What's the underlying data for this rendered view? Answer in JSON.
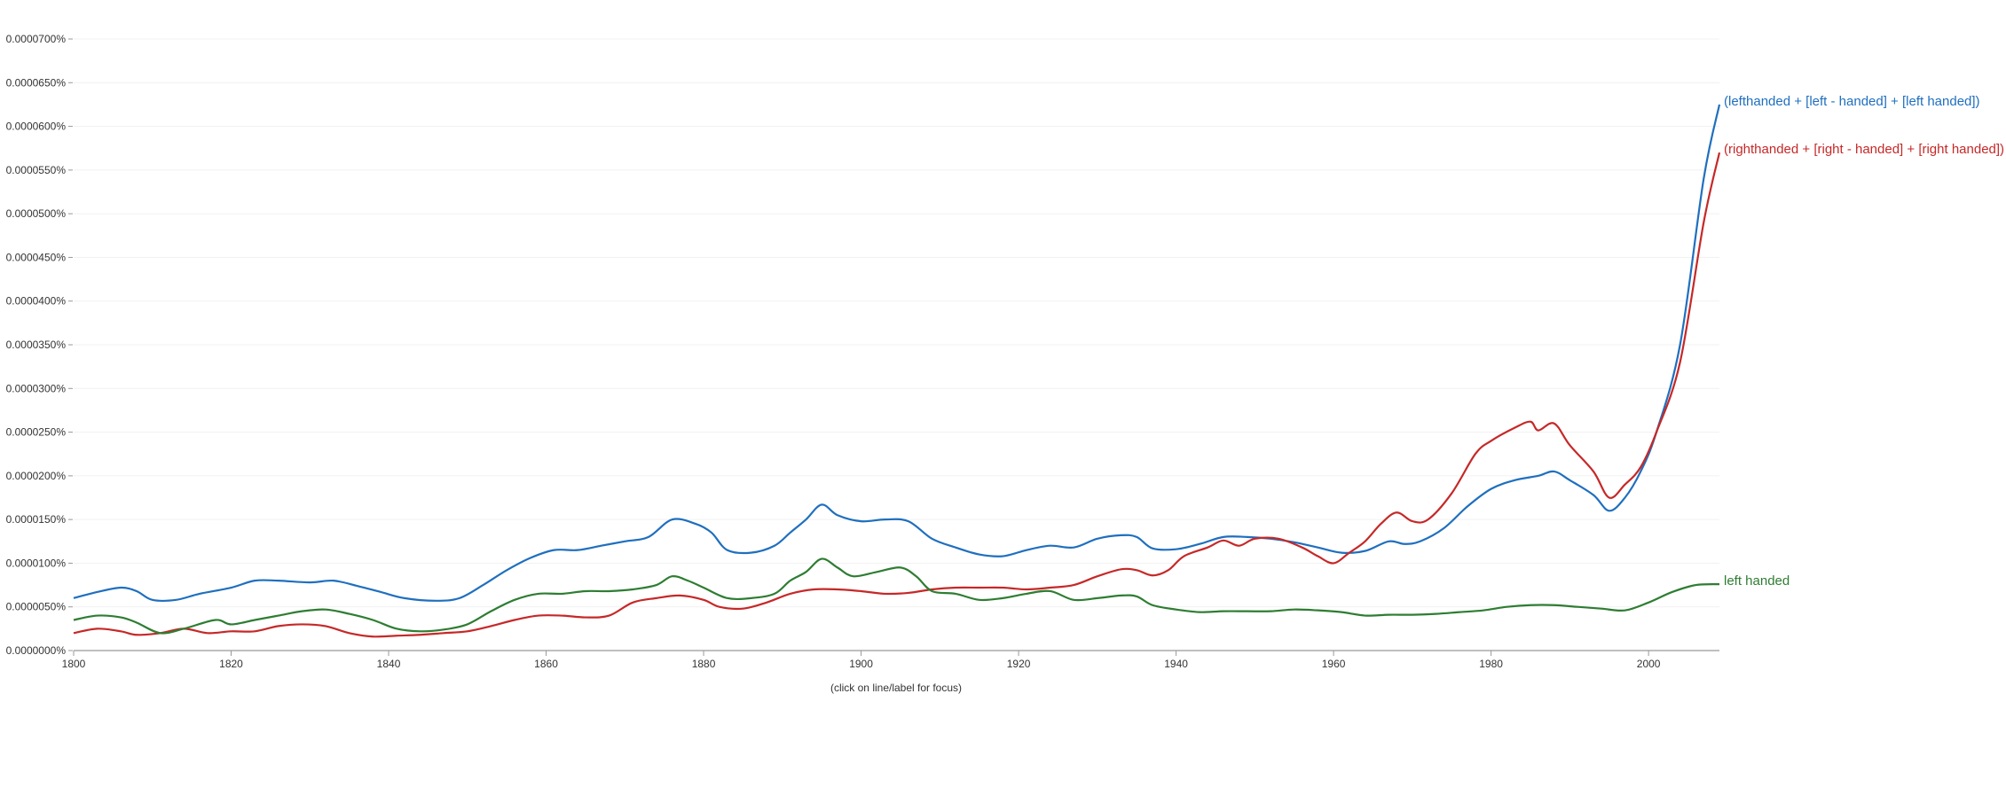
{
  "chart_data": {
    "type": "line",
    "note": "(click on line/label for focus)",
    "x_ticks": [
      "1800",
      "1820",
      "1840",
      "1860",
      "1880",
      "1900",
      "1920",
      "1940",
      "1960",
      "1980",
      "2000"
    ],
    "y_ticks": [
      "0.0000000%",
      "0.0000050%",
      "0.0000100%",
      "0.0000150%",
      "0.0000200%",
      "0.0000250%",
      "0.0000300%",
      "0.0000350%",
      "0.0000400%",
      "0.0000450%",
      "0.0000500%",
      "0.0000550%",
      "0.0000600%",
      "0.0000650%",
      "0.0000700%"
    ],
    "xlim": [
      1800,
      2009
    ],
    "ylim": [
      0,
      7e-05
    ],
    "grid": true,
    "series": [
      {
        "name": "(lefthanded + [left - handed] + [left handed])",
        "color": "#1f6fbf",
        "points": [
          [
            1800,
            6e-06
          ],
          [
            1803,
            6.7e-06
          ],
          [
            1806,
            7.2e-06
          ],
          [
            1808,
            6.8e-06
          ],
          [
            1810,
            5.8e-06
          ],
          [
            1813,
            5.8e-06
          ],
          [
            1816,
            6.5e-06
          ],
          [
            1820,
            7.2e-06
          ],
          [
            1823,
            8e-06
          ],
          [
            1826,
            8e-06
          ],
          [
            1830,
            7.8e-06
          ],
          [
            1833,
            8e-06
          ],
          [
            1836,
            7.4e-06
          ],
          [
            1839,
            6.7e-06
          ],
          [
            1842,
            6e-06
          ],
          [
            1846,
            5.7e-06
          ],
          [
            1849,
            6e-06
          ],
          [
            1852,
            7.5e-06
          ],
          [
            1855,
            9.2e-06
          ],
          [
            1858,
            1.06e-05
          ],
          [
            1861,
            1.15e-05
          ],
          [
            1864,
            1.15e-05
          ],
          [
            1867,
            1.2e-05
          ],
          [
            1870,
            1.25e-05
          ],
          [
            1873,
            1.3e-05
          ],
          [
            1876,
            1.5e-05
          ],
          [
            1879,
            1.45e-05
          ],
          [
            1881,
            1.35e-05
          ],
          [
            1883,
            1.15e-05
          ],
          [
            1886,
            1.12e-05
          ],
          [
            1889,
            1.2e-05
          ],
          [
            1891,
            1.35e-05
          ],
          [
            1893,
            1.5e-05
          ],
          [
            1895,
            1.67e-05
          ],
          [
            1897,
            1.55e-05
          ],
          [
            1900,
            1.48e-05
          ],
          [
            1903,
            1.5e-05
          ],
          [
            1906,
            1.48e-05
          ],
          [
            1909,
            1.28e-05
          ],
          [
            1912,
            1.18e-05
          ],
          [
            1915,
            1.1e-05
          ],
          [
            1918,
            1.08e-05
          ],
          [
            1921,
            1.15e-05
          ],
          [
            1924,
            1.2e-05
          ],
          [
            1927,
            1.18e-05
          ],
          [
            1930,
            1.28e-05
          ],
          [
            1933,
            1.32e-05
          ],
          [
            1935,
            1.3e-05
          ],
          [
            1937,
            1.17e-05
          ],
          [
            1940,
            1.16e-05
          ],
          [
            1943,
            1.22e-05
          ],
          [
            1946,
            1.3e-05
          ],
          [
            1949,
            1.3e-05
          ],
          [
            1952,
            1.28e-05
          ],
          [
            1955,
            1.24e-05
          ],
          [
            1958,
            1.18e-05
          ],
          [
            1961,
            1.12e-05
          ],
          [
            1964,
            1.14e-05
          ],
          [
            1967,
            1.25e-05
          ],
          [
            1969,
            1.22e-05
          ],
          [
            1971,
            1.25e-05
          ],
          [
            1974,
            1.4e-05
          ],
          [
            1977,
            1.65e-05
          ],
          [
            1980,
            1.85e-05
          ],
          [
            1983,
            1.95e-05
          ],
          [
            1986,
            2e-05
          ],
          [
            1988,
            2.05e-05
          ],
          [
            1990,
            1.95e-05
          ],
          [
            1993,
            1.78e-05
          ],
          [
            1995,
            1.6e-05
          ],
          [
            1997,
            1.75e-05
          ],
          [
            1999,
            2.05e-05
          ],
          [
            2001,
            2.5e-05
          ],
          [
            2004,
            3.5e-05
          ],
          [
            2007,
            5.4e-05
          ],
          [
            2009,
            6.25e-05
          ]
        ]
      },
      {
        "name": "(righthanded + [right - handed] + [right handed])",
        "color": "#c62828",
        "points": [
          [
            1800,
            2e-06
          ],
          [
            1803,
            2.5e-06
          ],
          [
            1806,
            2.2e-06
          ],
          [
            1808,
            1.8e-06
          ],
          [
            1811,
            2e-06
          ],
          [
            1814,
            2.5e-06
          ],
          [
            1817,
            2e-06
          ],
          [
            1820,
            2.2e-06
          ],
          [
            1823,
            2.2e-06
          ],
          [
            1826,
            2.8e-06
          ],
          [
            1829,
            3e-06
          ],
          [
            1832,
            2.8e-06
          ],
          [
            1835,
            2e-06
          ],
          [
            1838,
            1.6e-06
          ],
          [
            1841,
            1.7e-06
          ],
          [
            1844,
            1.8e-06
          ],
          [
            1847,
            2e-06
          ],
          [
            1850,
            2.2e-06
          ],
          [
            1853,
            2.8e-06
          ],
          [
            1856,
            3.5e-06
          ],
          [
            1859,
            4e-06
          ],
          [
            1862,
            4e-06
          ],
          [
            1865,
            3.8e-06
          ],
          [
            1868,
            4e-06
          ],
          [
            1871,
            5.5e-06
          ],
          [
            1874,
            6e-06
          ],
          [
            1877,
            6.3e-06
          ],
          [
            1880,
            5.8e-06
          ],
          [
            1882,
            5e-06
          ],
          [
            1885,
            4.8e-06
          ],
          [
            1888,
            5.5e-06
          ],
          [
            1891,
            6.5e-06
          ],
          [
            1894,
            7e-06
          ],
          [
            1897,
            7e-06
          ],
          [
            1900,
            6.8e-06
          ],
          [
            1903,
            6.5e-06
          ],
          [
            1906,
            6.6e-06
          ],
          [
            1909,
            7e-06
          ],
          [
            1912,
            7.2e-06
          ],
          [
            1915,
            7.2e-06
          ],
          [
            1918,
            7.2e-06
          ],
          [
            1921,
            7e-06
          ],
          [
            1924,
            7.2e-06
          ],
          [
            1927,
            7.5e-06
          ],
          [
            1930,
            8.5e-06
          ],
          [
            1933,
            9.3e-06
          ],
          [
            1935,
            9.2e-06
          ],
          [
            1937,
            8.6e-06
          ],
          [
            1939,
            9.2e-06
          ],
          [
            1941,
            1.08e-05
          ],
          [
            1944,
            1.18e-05
          ],
          [
            1946,
            1.26e-05
          ],
          [
            1948,
            1.2e-05
          ],
          [
            1950,
            1.28e-05
          ],
          [
            1953,
            1.28e-05
          ],
          [
            1956,
            1.18e-05
          ],
          [
            1958,
            1.08e-05
          ],
          [
            1960,
            1e-05
          ],
          [
            1962,
            1.12e-05
          ],
          [
            1964,
            1.25e-05
          ],
          [
            1966,
            1.45e-05
          ],
          [
            1968,
            1.58e-05
          ],
          [
            1970,
            1.48e-05
          ],
          [
            1972,
            1.5e-05
          ],
          [
            1975,
            1.8e-05
          ],
          [
            1978,
            2.25e-05
          ],
          [
            1980,
            2.4e-05
          ],
          [
            1983,
            2.55e-05
          ],
          [
            1985,
            2.62e-05
          ],
          [
            1986,
            2.52e-05
          ],
          [
            1988,
            2.6e-05
          ],
          [
            1990,
            2.35e-05
          ],
          [
            1993,
            2.05e-05
          ],
          [
            1995,
            1.75e-05
          ],
          [
            1997,
            1.9e-05
          ],
          [
            1999,
            2.1e-05
          ],
          [
            2001,
            2.5e-05
          ],
          [
            2004,
            3.3e-05
          ],
          [
            2007,
            4.9e-05
          ],
          [
            2009,
            5.7e-05
          ]
        ]
      },
      {
        "name": "left handed",
        "color": "#2e7d32",
        "points": [
          [
            1800,
            3.5e-06
          ],
          [
            1803,
            4e-06
          ],
          [
            1806,
            3.8e-06
          ],
          [
            1808,
            3.2e-06
          ],
          [
            1811,
            2e-06
          ],
          [
            1814,
            2.5e-06
          ],
          [
            1818,
            3.5e-06
          ],
          [
            1820,
            3e-06
          ],
          [
            1823,
            3.5e-06
          ],
          [
            1826,
            4e-06
          ],
          [
            1829,
            4.5e-06
          ],
          [
            1832,
            4.7e-06
          ],
          [
            1835,
            4.2e-06
          ],
          [
            1838,
            3.5e-06
          ],
          [
            1841,
            2.5e-06
          ],
          [
            1844,
            2.2e-06
          ],
          [
            1847,
            2.4e-06
          ],
          [
            1850,
            3e-06
          ],
          [
            1853,
            4.5e-06
          ],
          [
            1856,
            5.8e-06
          ],
          [
            1859,
            6.5e-06
          ],
          [
            1862,
            6.5e-06
          ],
          [
            1865,
            6.8e-06
          ],
          [
            1868,
            6.8e-06
          ],
          [
            1871,
            7e-06
          ],
          [
            1874,
            7.5e-06
          ],
          [
            1876,
            8.5e-06
          ],
          [
            1878,
            8e-06
          ],
          [
            1880,
            7.2e-06
          ],
          [
            1883,
            6e-06
          ],
          [
            1886,
            6e-06
          ],
          [
            1889,
            6.5e-06
          ],
          [
            1891,
            8e-06
          ],
          [
            1893,
            9e-06
          ],
          [
            1895,
            1.05e-05
          ],
          [
            1897,
            9.5e-06
          ],
          [
            1899,
            8.5e-06
          ],
          [
            1902,
            9e-06
          ],
          [
            1905,
            9.5e-06
          ],
          [
            1907,
            8.5e-06
          ],
          [
            1909,
            6.8e-06
          ],
          [
            1912,
            6.5e-06
          ],
          [
            1915,
            5.8e-06
          ],
          [
            1918,
            6e-06
          ],
          [
            1921,
            6.5e-06
          ],
          [
            1924,
            6.8e-06
          ],
          [
            1927,
            5.8e-06
          ],
          [
            1930,
            6e-06
          ],
          [
            1933,
            6.3e-06
          ],
          [
            1935,
            6.2e-06
          ],
          [
            1937,
            5.2e-06
          ],
          [
            1940,
            4.7e-06
          ],
          [
            1943,
            4.4e-06
          ],
          [
            1946,
            4.5e-06
          ],
          [
            1949,
            4.5e-06
          ],
          [
            1952,
            4.5e-06
          ],
          [
            1955,
            4.7e-06
          ],
          [
            1958,
            4.6e-06
          ],
          [
            1961,
            4.4e-06
          ],
          [
            1964,
            4e-06
          ],
          [
            1967,
            4.1e-06
          ],
          [
            1970,
            4.1e-06
          ],
          [
            1973,
            4.2e-06
          ],
          [
            1976,
            4.4e-06
          ],
          [
            1979,
            4.6e-06
          ],
          [
            1982,
            5e-06
          ],
          [
            1985,
            5.2e-06
          ],
          [
            1988,
            5.2e-06
          ],
          [
            1991,
            5e-06
          ],
          [
            1994,
            4.8e-06
          ],
          [
            1997,
            4.6e-06
          ],
          [
            2000,
            5.5e-06
          ],
          [
            2003,
            6.7e-06
          ],
          [
            2006,
            7.5e-06
          ],
          [
            2009,
            7.6e-06
          ]
        ]
      }
    ]
  }
}
